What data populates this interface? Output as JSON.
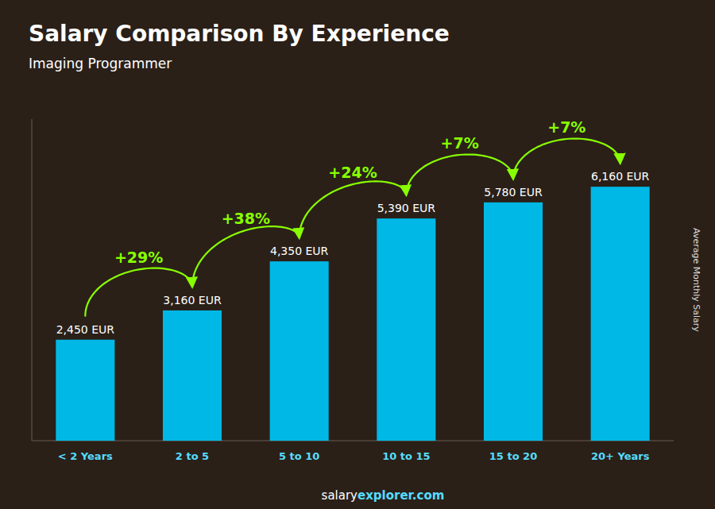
{
  "chart_data": {
    "type": "bar",
    "title": "Salary Comparison By Experience",
    "subtitle": "Imaging Programmer",
    "ylabel": "Average Monthly Salary",
    "footer": [
      "salary",
      "explorer.com"
    ],
    "categories": [
      "< 2 Years",
      "2 to 5",
      "5 to 10",
      "10 to 15",
      "15 to 20",
      "20+ Years"
    ],
    "values": [
      2450,
      3160,
      4350,
      5390,
      5780,
      6160
    ],
    "value_labels": [
      "2,450 EUR",
      "3,160 EUR",
      "4,350 EUR",
      "5,390 EUR",
      "5,780 EUR",
      "6,160 EUR"
    ],
    "annotations": [
      "+29%",
      "+38%",
      "+24%",
      "+7%",
      "+7%"
    ],
    "color": "#00b8e6",
    "ylim": [
      0,
      7800
    ],
    "data_labels": true,
    "tick_labels": "x",
    "grid": false
  }
}
